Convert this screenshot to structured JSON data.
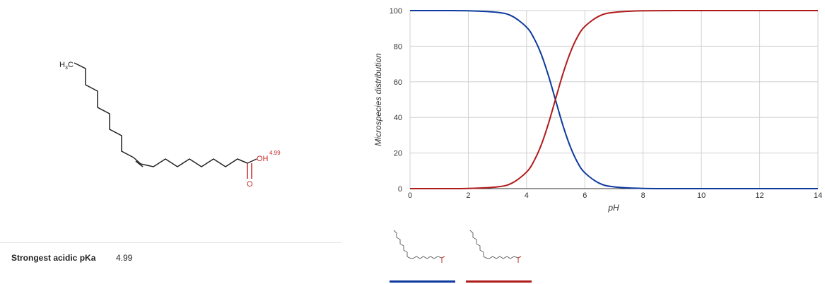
{
  "molecule": {
    "atoms": {
      "methyl": "H",
      "methyl_sub": "3",
      "methyl_c": "C",
      "hydroxyl": "OH",
      "carbonyl": "O"
    },
    "pka_annotation": "4.99"
  },
  "properties": {
    "label": "Strongest acidic pKa",
    "value": "4.99"
  },
  "chart_data": {
    "type": "line",
    "xlabel": "pH",
    "ylabel": "Microspecies distribution",
    "xlim": [
      0,
      14
    ],
    "ylim": [
      0,
      100
    ],
    "xticks": [
      "0",
      "2",
      "4",
      "6",
      "8",
      "10",
      "12",
      "14"
    ],
    "yticks": [
      "0",
      "20",
      "40",
      "60",
      "80",
      "100"
    ],
    "grid": true,
    "x": [
      0,
      1,
      2,
      3,
      3.5,
      4,
      4.25,
      4.5,
      4.75,
      5,
      5.25,
      5.5,
      5.75,
      6,
      6.5,
      7,
      8,
      10,
      12,
      14
    ],
    "series": [
      {
        "color": "#0d3a9e",
        "values": [
          100,
          100,
          99.9,
          99.0,
          96.9,
          90.7,
          84.6,
          75.6,
          63.5,
          49.4,
          35.4,
          23.6,
          14.7,
          8.9,
          3.0,
          1.0,
          0.1,
          0,
          0,
          0
        ]
      },
      {
        "color": "#b01c1c",
        "values": [
          0,
          0,
          0.1,
          1.0,
          3.1,
          9.3,
          15.4,
          24.4,
          36.5,
          50.6,
          64.6,
          76.4,
          85.3,
          91.1,
          97.0,
          99.0,
          99.9,
          100,
          100,
          100
        ]
      }
    ]
  },
  "species": [
    {
      "color": "#0d3a9e",
      "label_color": "#c62828"
    },
    {
      "color": "#b01c1c",
      "label_color": "#c62828"
    }
  ]
}
